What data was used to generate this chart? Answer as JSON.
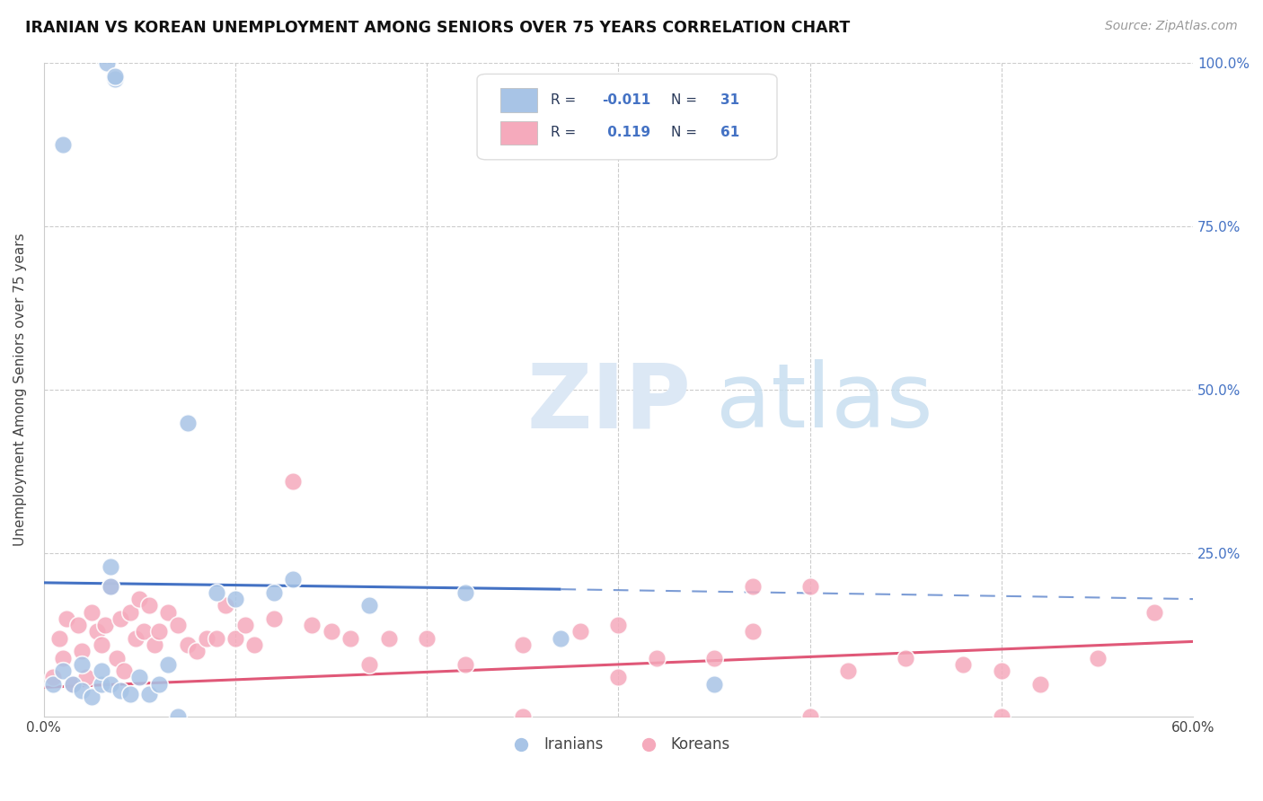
{
  "title": "IRANIAN VS KOREAN UNEMPLOYMENT AMONG SENIORS OVER 75 YEARS CORRELATION CHART",
  "source": "Source: ZipAtlas.com",
  "ylabel": "Unemployment Among Seniors over 75 years",
  "xlim": [
    0.0,
    0.6
  ],
  "ylim": [
    0.0,
    1.0
  ],
  "background_color": "#ffffff",
  "watermark_zip": "ZIP",
  "watermark_atlas": "atlas",
  "iranian_dot_color": "#a8c4e6",
  "korean_dot_color": "#f5aabc",
  "iranian_line_color": "#4472c4",
  "korean_line_color": "#e05878",
  "grid_color": "#cccccc",
  "legend_R_color": "#4472c4",
  "legend_N_color": "#4472c4",
  "legend_label_color": "#2a3a5a",
  "right_axis_color": "#4472c4",
  "iranian_R": "-0.011",
  "iranian_N": "31",
  "korean_R": "0.119",
  "korean_N": "61",
  "iranian_scatter_x": [
    0.033,
    0.037,
    0.037,
    0.01,
    0.035,
    0.035,
    0.005,
    0.01,
    0.015,
    0.02,
    0.02,
    0.025,
    0.03,
    0.03,
    0.035,
    0.04,
    0.045,
    0.05,
    0.055,
    0.06,
    0.065,
    0.07,
    0.075,
    0.09,
    0.1,
    0.12,
    0.13,
    0.17,
    0.22,
    0.27,
    0.35
  ],
  "iranian_scatter_y": [
    1.0,
    0.975,
    0.98,
    0.875,
    0.23,
    0.2,
    0.05,
    0.07,
    0.05,
    0.08,
    0.04,
    0.03,
    0.05,
    0.07,
    0.05,
    0.04,
    0.035,
    0.06,
    0.035,
    0.05,
    0.08,
    0.0,
    0.45,
    0.19,
    0.18,
    0.19,
    0.21,
    0.17,
    0.19,
    0.12,
    0.05
  ],
  "korean_scatter_x": [
    0.005,
    0.008,
    0.01,
    0.012,
    0.015,
    0.018,
    0.02,
    0.022,
    0.025,
    0.028,
    0.03,
    0.032,
    0.035,
    0.038,
    0.04,
    0.042,
    0.045,
    0.048,
    0.05,
    0.052,
    0.055,
    0.058,
    0.06,
    0.065,
    0.07,
    0.075,
    0.08,
    0.085,
    0.09,
    0.095,
    0.1,
    0.105,
    0.11,
    0.12,
    0.13,
    0.14,
    0.15,
    0.16,
    0.17,
    0.18,
    0.2,
    0.22,
    0.25,
    0.28,
    0.3,
    0.32,
    0.35,
    0.37,
    0.4,
    0.42,
    0.45,
    0.48,
    0.5,
    0.52,
    0.3,
    0.25,
    0.37,
    0.4,
    0.5,
    0.55,
    0.58
  ],
  "korean_scatter_y": [
    0.06,
    0.12,
    0.09,
    0.15,
    0.05,
    0.14,
    0.1,
    0.06,
    0.16,
    0.13,
    0.11,
    0.14,
    0.2,
    0.09,
    0.15,
    0.07,
    0.16,
    0.12,
    0.18,
    0.13,
    0.17,
    0.11,
    0.13,
    0.16,
    0.14,
    0.11,
    0.1,
    0.12,
    0.12,
    0.17,
    0.12,
    0.14,
    0.11,
    0.15,
    0.36,
    0.14,
    0.13,
    0.12,
    0.08,
    0.12,
    0.12,
    0.08,
    0.11,
    0.13,
    0.06,
    0.09,
    0.09,
    0.2,
    0.2,
    0.07,
    0.09,
    0.08,
    0.07,
    0.05,
    0.14,
    0.0,
    0.13,
    0.0,
    0.0,
    0.09,
    0.16
  ],
  "iranian_line_start_x": 0.0,
  "iranian_line_start_y": 0.205,
  "iranian_line_solid_end_x": 0.27,
  "iranian_line_solid_end_y": 0.195,
  "iranian_line_dash_end_x": 0.6,
  "iranian_line_dash_end_y": 0.18,
  "korean_line_start_x": 0.0,
  "korean_line_start_y": 0.045,
  "korean_line_end_x": 0.6,
  "korean_line_end_y": 0.115
}
